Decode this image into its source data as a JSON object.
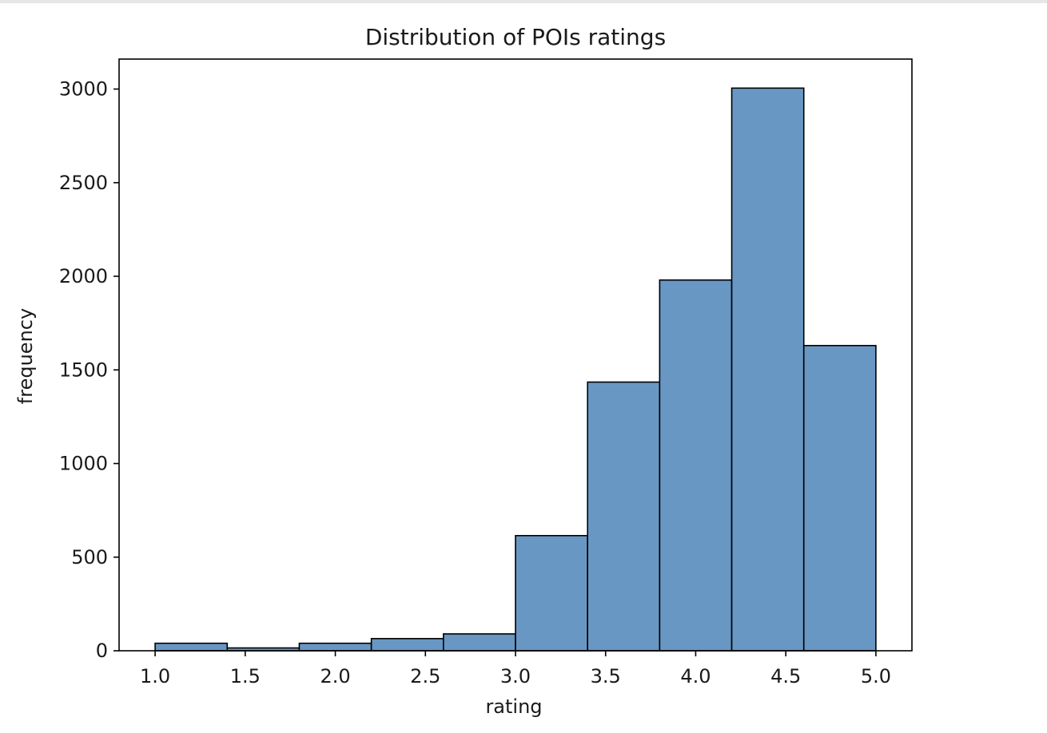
{
  "chart_data": {
    "type": "bar",
    "title": "Distribution of POIs ratings",
    "xlabel": "rating",
    "ylabel": "frequency",
    "xlim": [
      0.8,
      5.2
    ],
    "ylim": [
      0,
      3160
    ],
    "xticks": [
      "1.0",
      "1.5",
      "2.0",
      "2.5",
      "3.0",
      "3.5",
      "4.0",
      "4.5",
      "5.0"
    ],
    "yticks": [
      "0",
      "500",
      "1000",
      "1500",
      "2000",
      "2500",
      "3000"
    ],
    "bin_edges": [
      1.0,
      1.4,
      1.8,
      2.2,
      2.6,
      3.0,
      3.4,
      3.8,
      4.2,
      4.6,
      5.0
    ],
    "values": [
      40,
      15,
      40,
      65,
      90,
      615,
      1435,
      1980,
      3005,
      1630
    ],
    "grid": false,
    "colors": {
      "bar_fill": "#6897c4",
      "bar_edge": "#000000",
      "axes": "#000000"
    }
  }
}
